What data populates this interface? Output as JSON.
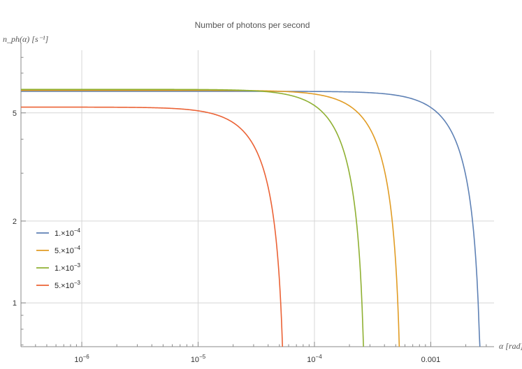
{
  "chart_data": {
    "type": "line",
    "title": "Number of photons per second",
    "ylabel": "n_ph(α) [s⁻¹]",
    "xlabel": "α [rad]",
    "x_scale": "log",
    "y_scale": "log",
    "xlim": [
      3e-07,
      0.0035
    ],
    "ylim": [
      0.69,
      8.5
    ],
    "grid": true,
    "legend_position": "left-middle",
    "x_ticks": [
      {
        "value": 1e-06,
        "mantissa": "10",
        "exponent": "−6"
      },
      {
        "value": 1e-05,
        "mantissa": "10",
        "exponent": "−5"
      },
      {
        "value": 0.0001,
        "mantissa": "10",
        "exponent": "−4"
      },
      {
        "value": 0.001,
        "mantissa": "0.001",
        "exponent": ""
      }
    ],
    "y_ticks": [
      {
        "value": 1,
        "label": "1"
      },
      {
        "value": 2,
        "label": "2"
      },
      {
        "value": 5,
        "label": "5"
      }
    ],
    "series": [
      {
        "name_mantissa": "1.×10",
        "name_exponent": "−4",
        "color": "#5E81B5",
        "plateau": 6.0,
        "alpha_end": 0.0028,
        "p": 2
      },
      {
        "name_mantissa": "5.×10",
        "name_exponent": "−4",
        "color": "#E19C24",
        "plateau": 6.05,
        "alpha_end": 0.00057,
        "p": 2
      },
      {
        "name_mantissa": "1.×10",
        "name_exponent": "−3",
        "color": "#8FB032",
        "plateau": 6.1,
        "alpha_end": 0.00028,
        "p": 2
      },
      {
        "name_mantissa": "5.×10",
        "name_exponent": "−3",
        "color": "#EB6235",
        "plateau": 5.25,
        "alpha_end": 5.7e-05,
        "p": 2
      }
    ]
  }
}
